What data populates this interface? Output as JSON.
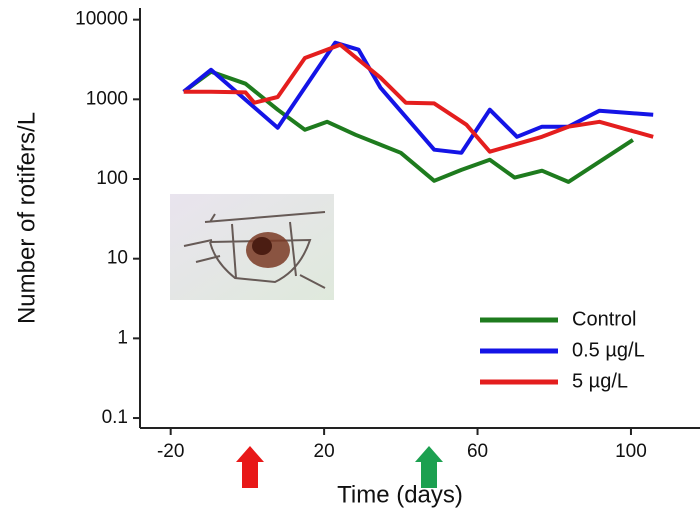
{
  "chart_data": {
    "type": "line",
    "xlabel": "Time (days)",
    "ylabel": "Number of rotifers/L",
    "xlim": [
      -28,
      118
    ],
    "xticks": [
      -20,
      20,
      60,
      100
    ],
    "ylim": [
      0.075,
      14000
    ],
    "yticks": [
      0.1,
      1,
      10,
      100,
      1000,
      10000
    ],
    "yscale": "log",
    "legend": "lower right",
    "series": [
      {
        "name": "Control",
        "color": "#1e7b1e",
        "x": [
          -16.6,
          -9.5,
          -0.5,
          7.9,
          15,
          20.8,
          28.2,
          40,
          48.7,
          55.8,
          63.2,
          69.7,
          76.8,
          83.7,
          100.5
        ],
        "values": [
          1245,
          2220,
          1570,
          740,
          415,
          523,
          359,
          213,
          95,
          130,
          174,
          104,
          127,
          92,
          310
        ]
      },
      {
        "name": "0.5 µg/L",
        "color": "#1414e6",
        "x": [
          -16.6,
          -9.5,
          7.9,
          22.9,
          29,
          34.7,
          48.7,
          55.8,
          63.2,
          70.3,
          76.8,
          83.7,
          91.8,
          105.8
        ],
        "values": [
          1245,
          2350,
          440,
          5140,
          4200,
          1400,
          233,
          213,
          740,
          339,
          453,
          453,
          720,
          640
        ]
      },
      {
        "name": "5 µg/L",
        "color": "#e41e1e",
        "x": [
          -16.6,
          -9.5,
          -0.5,
          1.8,
          7.9,
          15,
          24.2,
          34.7,
          41.3,
          48.7,
          57.1,
          63.2,
          76.8,
          83.7,
          91.8,
          105.8
        ],
        "values": [
          1245,
          1245,
          1220,
          906,
          1070,
          3300,
          4850,
          1870,
          906,
          890,
          480,
          220,
          339,
          453,
          523,
          339
        ]
      }
    ]
  }
}
